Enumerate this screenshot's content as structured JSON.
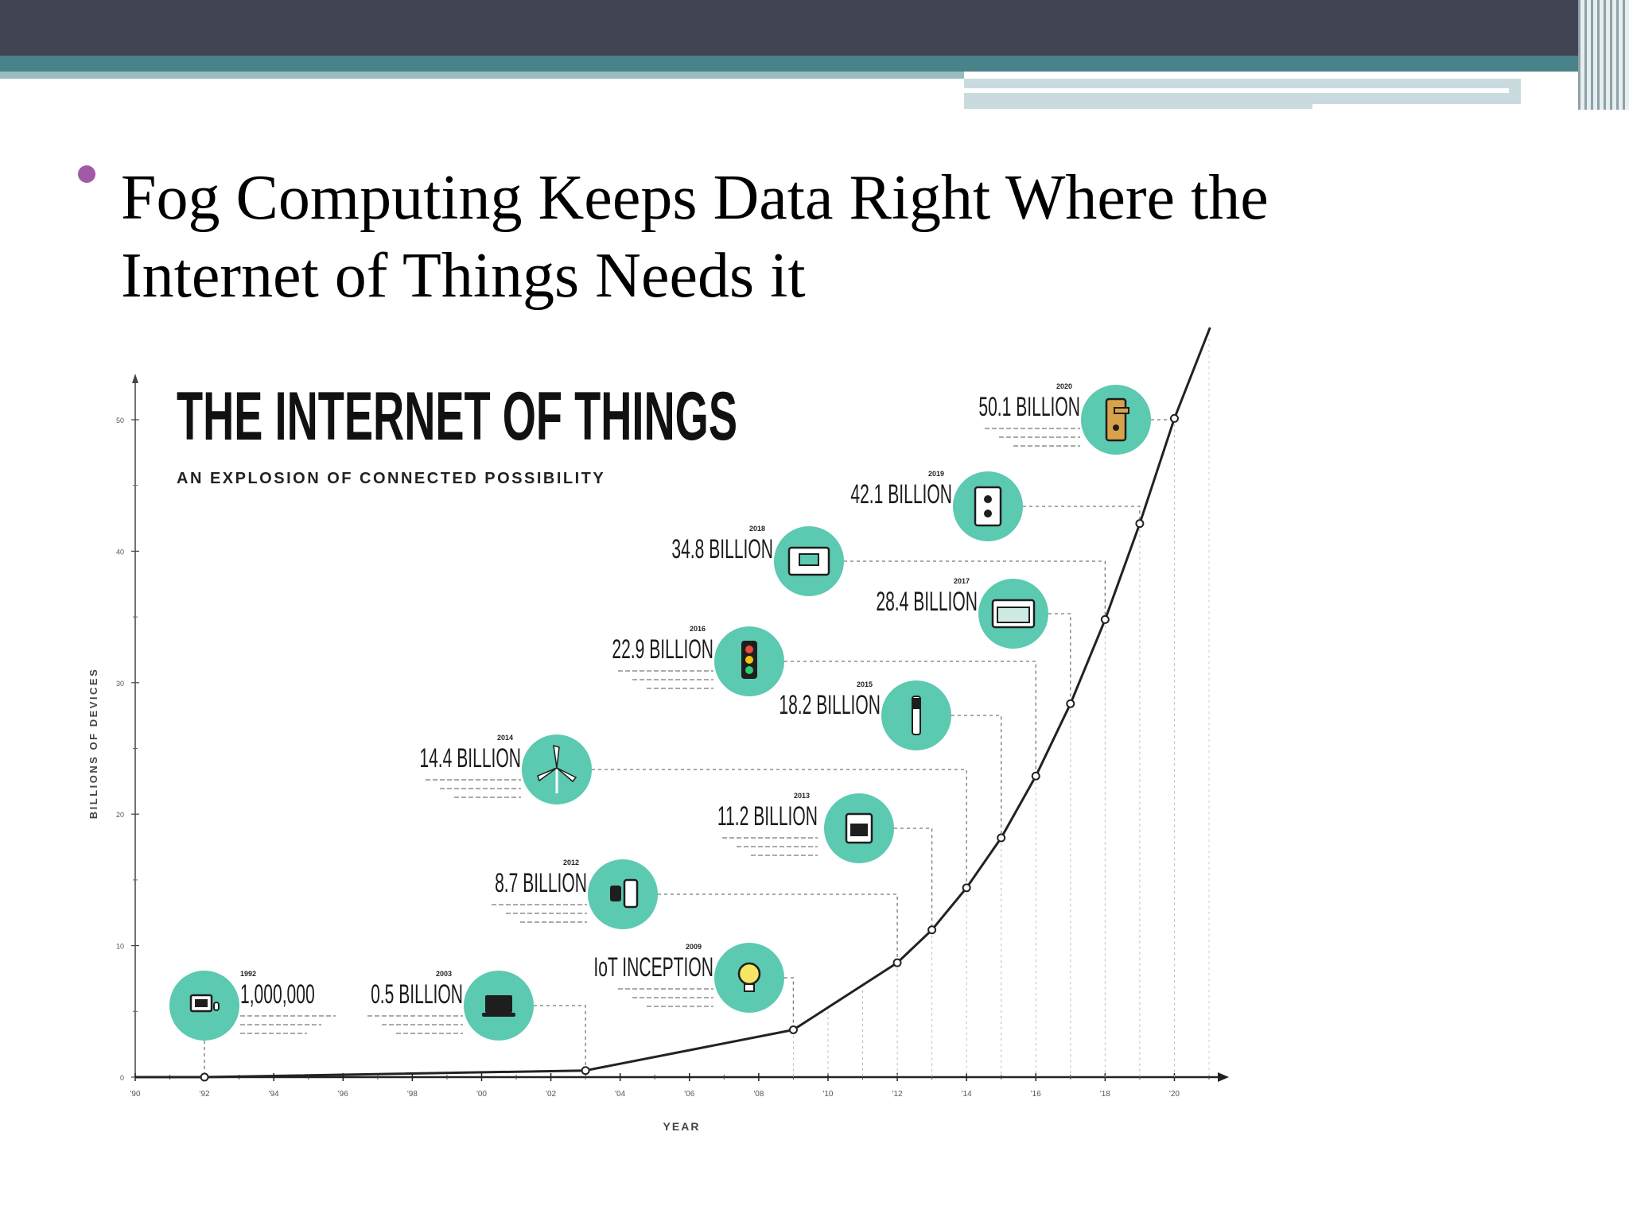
{
  "slide": {
    "title_line1": "Fog Computing Keeps Data Right Where the",
    "title_line2": "Internet of Things Needs it"
  },
  "chart_data": {
    "type": "line",
    "title": "THE INTERNET OF THINGS",
    "subtitle": "AN EXPLOSION OF CONNECTED POSSIBILITY",
    "xlabel": "YEAR",
    "ylabel": "BILLIONS OF DEVICES",
    "xlim": [
      1990,
      2021
    ],
    "ylim": [
      0,
      50
    ],
    "x_ticks": [
      {
        "x": 1990,
        "label": "'90"
      },
      {
        "x": 1992,
        "label": "'92"
      },
      {
        "x": 1994,
        "label": "'94"
      },
      {
        "x": 1996,
        "label": "'96"
      },
      {
        "x": 1998,
        "label": "'98"
      },
      {
        "x": 2000,
        "label": "'00"
      },
      {
        "x": 2002,
        "label": "'02"
      },
      {
        "x": 2004,
        "label": "'04"
      },
      {
        "x": 2006,
        "label": "'06"
      },
      {
        "x": 2008,
        "label": "'08"
      },
      {
        "x": 2010,
        "label": "'10"
      },
      {
        "x": 2012,
        "label": "'12"
      },
      {
        "x": 2014,
        "label": "'14"
      },
      {
        "x": 2016,
        "label": "'16"
      },
      {
        "x": 2018,
        "label": "'18"
      },
      {
        "x": 2020,
        "label": "'20"
      }
    ],
    "y_ticks": [
      {
        "y": 0,
        "label": "0"
      },
      {
        "y": 10,
        "label": "10"
      },
      {
        "y": 20,
        "label": "20"
      },
      {
        "y": 30,
        "label": "30"
      },
      {
        "y": 40,
        "label": "40"
      },
      {
        "y": 50,
        "label": "50"
      }
    ],
    "x": [
      1992,
      2003,
      2009,
      2012,
      2013,
      2014,
      2015,
      2016,
      2017,
      2018,
      2019,
      2020
    ],
    "y": [
      0.001,
      0.5,
      3.6,
      8.7,
      11.2,
      14.4,
      18.2,
      22.9,
      28.4,
      34.8,
      42.1,
      50.1
    ],
    "annotations": [
      {
        "year": "1992",
        "label": "1,000,000",
        "icon": "desktop-computer-icon"
      },
      {
        "year": "2003",
        "label": "0.5 BILLION",
        "icon": "laptop-icon"
      },
      {
        "year": "2009",
        "label": "IoT INCEPTION",
        "icon": "lightbulb-icon"
      },
      {
        "year": "2012",
        "label": "8.7 BILLION",
        "icon": "smartwatch-phone-icon"
      },
      {
        "year": "2013",
        "label": "11.2 BILLION",
        "icon": "stove-icon"
      },
      {
        "year": "2014",
        "label": "14.4 BILLION",
        "icon": "wind-turbine-icon"
      },
      {
        "year": "2015",
        "label": "18.2 BILLION",
        "icon": "toothbrush-icon"
      },
      {
        "year": "2016",
        "label": "22.9 BILLION",
        "icon": "traffic-light-icon"
      },
      {
        "year": "2017",
        "label": "28.4 BILLION",
        "icon": "oven-icon"
      },
      {
        "year": "2018",
        "label": "34.8 BILLION",
        "icon": "thermostat-icon"
      },
      {
        "year": "2019",
        "label": "42.1 BILLION",
        "icon": "power-outlet-icon"
      },
      {
        "year": "2020",
        "label": "50.1 BILLION",
        "icon": "door-lock-icon"
      }
    ],
    "colors": {
      "badge": "#5cc9b1",
      "line": "#222222",
      "badge_stroke": "#1e1e1e"
    },
    "grid": false
  }
}
